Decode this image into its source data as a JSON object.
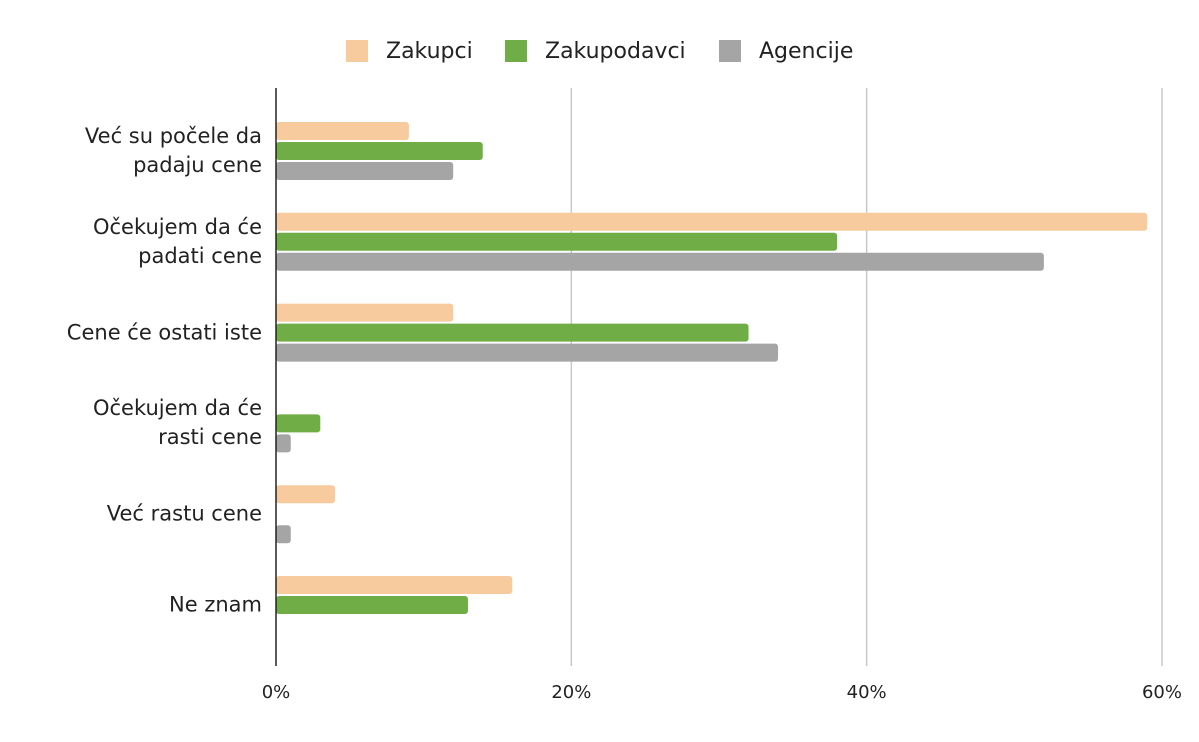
{
  "chart_data": {
    "type": "bar",
    "orientation": "horizontal",
    "categories": [
      "Već su počele da padaju cene",
      "Očekujem da će padati cene",
      "Cene će ostati iste",
      "Očekujem da će rasti cene",
      "Već rastu cene",
      "Ne znam"
    ],
    "series": [
      {
        "name": "Zakupci",
        "color": "#f8cb9e",
        "values": [
          9,
          59,
          12,
          0,
          4,
          16
        ]
      },
      {
        "name": "Zakupodavci",
        "color": "#70ad47",
        "values": [
          14,
          38,
          32,
          3,
          0,
          13
        ]
      },
      {
        "name": "Agencije",
        "color": "#a5a5a5",
        "values": [
          12,
          52,
          34,
          1,
          1,
          0
        ]
      }
    ],
    "xlim": [
      0,
      60
    ],
    "xticks": [
      {
        "value": 0,
        "label": "0%"
      },
      {
        "value": 20,
        "label": "20%"
      },
      {
        "value": 40,
        "label": "40%"
      },
      {
        "value": 60,
        "label": "60%"
      }
    ],
    "grid": true,
    "legend": "top"
  }
}
